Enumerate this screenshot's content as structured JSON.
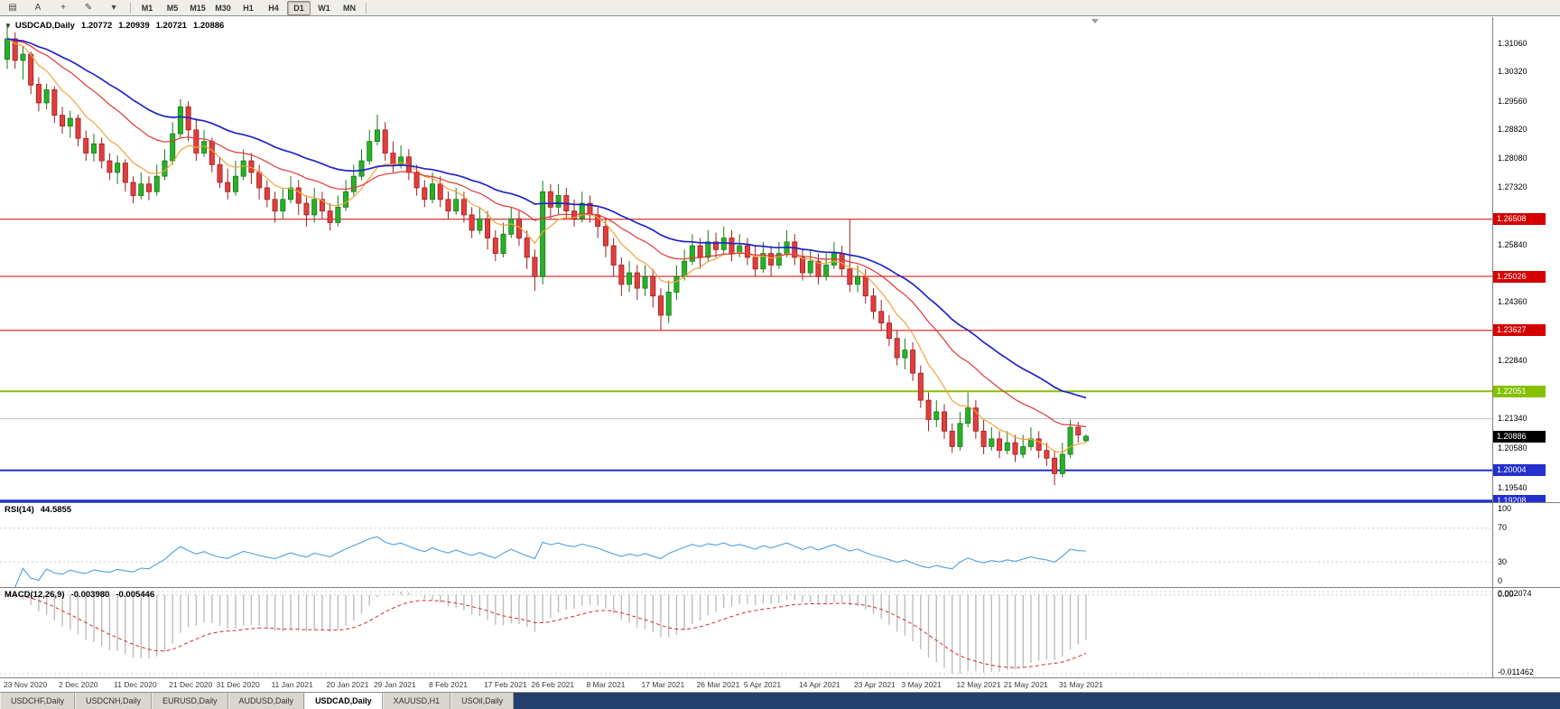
{
  "toolbar": {
    "icons": [
      {
        "name": "chart-window-icon",
        "glyph": "▤"
      },
      {
        "name": "text-tool-icon",
        "glyph": "A"
      },
      {
        "name": "crosshair-tool-icon",
        "glyph": "+"
      },
      {
        "name": "draw-tools-icon",
        "glyph": "✎"
      },
      {
        "name": "draw-tools-dropdown-arrow-icon",
        "glyph": "▾"
      }
    ],
    "timeframes": [
      "M1",
      "M5",
      "M15",
      "M30",
      "H1",
      "H4",
      "D1",
      "W1",
      "MN"
    ],
    "active_timeframe": "D1"
  },
  "chart": {
    "symbol_timeframe": "USDCAD,Daily",
    "open": "1.20772",
    "high": "1.20939",
    "low": "1.20721",
    "close": "1.20886"
  },
  "price_axis": {
    "labels": [
      {
        "p": 1.3106,
        "t": "1.31060"
      },
      {
        "p": 1.3032,
        "t": "1.30320"
      },
      {
        "p": 1.2956,
        "t": "1.29560"
      },
      {
        "p": 1.2882,
        "t": "1.28820"
      },
      {
        "p": 1.2808,
        "t": "1.28080"
      },
      {
        "p": 1.2732,
        "t": "1.27320"
      },
      {
        "p": 1.2584,
        "t": "1.25840"
      },
      {
        "p": 1.2436,
        "t": "1.24360"
      },
      {
        "p": 1.2284,
        "t": "1.22840"
      },
      {
        "p": 1.2134,
        "t": "1.21340"
      },
      {
        "p": 1.2058,
        "t": "1.20580"
      },
      {
        "p": 1.1954,
        "t": "1.19540"
      }
    ]
  },
  "levels": [
    {
      "price": 1.26508,
      "label": "1.26508",
      "color": "#d40000",
      "thickness": 1
    },
    {
      "price": 1.25026,
      "label": "1.25026",
      "color": "#d40000",
      "thickness": 1
    },
    {
      "price": 1.23627,
      "label": "1.23627",
      "color": "#d40000",
      "thickness": 1
    },
    {
      "price": 1.22051,
      "label": "1.22051",
      "color": "#86c100",
      "thickness": 2
    },
    {
      "price": 1.2134,
      "label": "",
      "color": "#c0c0c0",
      "thickness": 1
    },
    {
      "price": 1.20004,
      "label": "1.20004",
      "color": "#2230cc",
      "thickness": 2
    },
    {
      "price": 1.19208,
      "label": "1.19208",
      "color": "#2230cc",
      "thickness": 3
    }
  ],
  "current_price": {
    "price": 1.20886,
    "text": "1.20886",
    "badge_color": "#000000"
  },
  "rsi": {
    "label": "RSI(14)",
    "value": "44.5855",
    "period": 14,
    "levels": [
      100,
      70,
      30,
      0
    ],
    "color": "#4da0e0"
  },
  "macd": {
    "label": "MACD(12,26,9)",
    "value_main": "-0.003980",
    "value_signal": "-0.005446",
    "axis_labels": [
      "0.002074",
      "0.00",
      "-0.011462"
    ],
    "histogram_color": "#bdbdbd",
    "signal_color": "#d42a2a"
  },
  "tabs": {
    "items": [
      "USDCHF,Daily",
      "USDCNH,Daily",
      "EURUSD,Daily",
      "AUDUSD,Daily",
      "USDCAD,Daily",
      "XAUUSD,H1",
      "USOil,Daily"
    ],
    "active": "USDCAD,Daily"
  },
  "chart_data": {
    "type": "candlestick",
    "symbol": "USDCAD",
    "timeframe": "Daily",
    "y_range": [
      1.1918,
      1.3174
    ],
    "colors": {
      "up_fill": "#29b129",
      "up_border": "#167a16",
      "down_fill": "#e23e3e",
      "down_border": "#9c1f1f"
    },
    "moving_averages": [
      {
        "period": 8,
        "color": "#f2a33a",
        "width": 1.2
      },
      {
        "period": 20,
        "color": "#e03636",
        "width": 1.2
      },
      {
        "period": 34,
        "color": "#2024c8",
        "width": 1.7
      }
    ],
    "date_labels": [
      {
        "i": 0,
        "t": "23 Nov 2020"
      },
      {
        "i": 7,
        "t": "2 Dec 2020"
      },
      {
        "i": 14,
        "t": "11 Dec 2020"
      },
      {
        "i": 21,
        "t": "21 Dec 2020"
      },
      {
        "i": 27,
        "t": "31 Dec 2020"
      },
      {
        "i": 34,
        "t": "11 Jan 2021"
      },
      {
        "i": 41,
        "t": "20 Jan 2021"
      },
      {
        "i": 47,
        "t": "29 Jan 2021"
      },
      {
        "i": 54,
        "t": "8 Feb 2021"
      },
      {
        "i": 61,
        "t": "17 Feb 2021"
      },
      {
        "i": 67,
        "t": "26 Feb 2021"
      },
      {
        "i": 74,
        "t": "8 Mar 2021"
      },
      {
        "i": 81,
        "t": "17 Mar 2021"
      },
      {
        "i": 88,
        "t": "26 Mar 2021"
      },
      {
        "i": 94,
        "t": "5 Apr 2021"
      },
      {
        "i": 101,
        "t": "14 Apr 2021"
      },
      {
        "i": 108,
        "t": "23 Apr 2021"
      },
      {
        "i": 114,
        "t": "3 May 2021"
      },
      {
        "i": 121,
        "t": "12 May 2021"
      },
      {
        "i": 127,
        "t": "21 May 2021"
      },
      {
        "i": 134,
        "t": "31 May 2021"
      }
    ],
    "candles": [
      [
        1.3065,
        1.3158,
        1.304,
        1.3118
      ],
      [
        1.3118,
        1.3135,
        1.304,
        1.3062
      ],
      [
        1.3062,
        1.3098,
        1.3012,
        1.3078
      ],
      [
        1.3078,
        1.3085,
        1.2975,
        1.2998
      ],
      [
        1.3,
        1.3018,
        1.293,
        1.2952
      ],
      [
        1.2952,
        1.3002,
        1.2935,
        1.2986
      ],
      [
        1.2986,
        1.2995,
        1.29,
        1.292
      ],
      [
        1.292,
        1.2942,
        1.2872,
        1.2892
      ],
      [
        1.2892,
        1.2932,
        1.2862,
        1.2912
      ],
      [
        1.2912,
        1.2922,
        1.284,
        1.286
      ],
      [
        1.286,
        1.288,
        1.2802,
        1.2822
      ],
      [
        1.2822,
        1.2872,
        1.28,
        1.2846
      ],
      [
        1.2846,
        1.2862,
        1.2782,
        1.2802
      ],
      [
        1.2802,
        1.2822,
        1.2752,
        1.2772
      ],
      [
        1.2772,
        1.2816,
        1.2742,
        1.2796
      ],
      [
        1.2796,
        1.2806,
        1.2722,
        1.2746
      ],
      [
        1.2746,
        1.2762,
        1.2692,
        1.2712
      ],
      [
        1.2712,
        1.2772,
        1.2702,
        1.2742
      ],
      [
        1.2742,
        1.2762,
        1.27,
        1.2722
      ],
      [
        1.2722,
        1.2792,
        1.2712,
        1.2762
      ],
      [
        1.2762,
        1.2832,
        1.2752,
        1.2802
      ],
      [
        1.2802,
        1.2902,
        1.2792,
        1.2872
      ],
      [
        1.2872,
        1.2962,
        1.2862,
        1.2942
      ],
      [
        1.2942,
        1.2956,
        1.2852,
        1.2882
      ],
      [
        1.2882,
        1.2912,
        1.2802,
        1.2822
      ],
      [
        1.2822,
        1.2882,
        1.2812,
        1.2852
      ],
      [
        1.2852,
        1.2862,
        1.2772,
        1.2792
      ],
      [
        1.2792,
        1.2812,
        1.2732,
        1.2746
      ],
      [
        1.2746,
        1.2782,
        1.2702,
        1.2722
      ],
      [
        1.2722,
        1.2802,
        1.2712,
        1.2762
      ],
      [
        1.2762,
        1.2832,
        1.2752,
        1.2802
      ],
      [
        1.2802,
        1.2822,
        1.2742,
        1.2772
      ],
      [
        1.2772,
        1.2792,
        1.2702,
        1.2732
      ],
      [
        1.2732,
        1.2752,
        1.2682,
        1.2702
      ],
      [
        1.2702,
        1.2722,
        1.2642,
        1.2672
      ],
      [
        1.2672,
        1.2732,
        1.2652,
        1.2702
      ],
      [
        1.2702,
        1.2762,
        1.2692,
        1.2732
      ],
      [
        1.2732,
        1.2752,
        1.2662,
        1.2692
      ],
      [
        1.2692,
        1.2712,
        1.2632,
        1.2662
      ],
      [
        1.2662,
        1.2732,
        1.2642,
        1.2702
      ],
      [
        1.2702,
        1.2722,
        1.2652,
        1.2672
      ],
      [
        1.2672,
        1.2692,
        1.2622,
        1.2642
      ],
      [
        1.2642,
        1.2712,
        1.2632,
        1.2682
      ],
      [
        1.2682,
        1.2752,
        1.2672,
        1.2722
      ],
      [
        1.2722,
        1.2792,
        1.2712,
        1.2762
      ],
      [
        1.2762,
        1.2832,
        1.2752,
        1.2802
      ],
      [
        1.2802,
        1.2882,
        1.2792,
        1.2852
      ],
      [
        1.2852,
        1.2922,
        1.2842,
        1.2882
      ],
      [
        1.2882,
        1.2902,
        1.2802,
        1.2822
      ],
      [
        1.2822,
        1.2852,
        1.2772,
        1.2792
      ],
      [
        1.2792,
        1.2842,
        1.2782,
        1.2812
      ],
      [
        1.2812,
        1.2832,
        1.2752,
        1.2772
      ],
      [
        1.2772,
        1.2792,
        1.2712,
        1.2732
      ],
      [
        1.2732,
        1.2752,
        1.2682,
        1.2702
      ],
      [
        1.2702,
        1.2772,
        1.2692,
        1.2742
      ],
      [
        1.2742,
        1.2762,
        1.2682,
        1.2702
      ],
      [
        1.2702,
        1.2722,
        1.2652,
        1.2672
      ],
      [
        1.2672,
        1.2732,
        1.2662,
        1.2702
      ],
      [
        1.2702,
        1.2722,
        1.2642,
        1.2662
      ],
      [
        1.2662,
        1.2682,
        1.2602,
        1.2622
      ],
      [
        1.2622,
        1.2682,
        1.2612,
        1.2652
      ],
      [
        1.2652,
        1.2672,
        1.2572,
        1.2602
      ],
      [
        1.2602,
        1.2622,
        1.2542,
        1.2562
      ],
      [
        1.2562,
        1.2642,
        1.2552,
        1.2612
      ],
      [
        1.2612,
        1.2682,
        1.2602,
        1.2652
      ],
      [
        1.2652,
        1.2672,
        1.2582,
        1.2602
      ],
      [
        1.2602,
        1.2622,
        1.2522,
        1.2552
      ],
      [
        1.2552,
        1.2572,
        1.2465,
        1.2502
      ],
      [
        1.2502,
        1.275,
        1.2482,
        1.2722
      ],
      [
        1.2722,
        1.2742,
        1.2652,
        1.2682
      ],
      [
        1.2682,
        1.2742,
        1.2662,
        1.2712
      ],
      [
        1.2712,
        1.2732,
        1.2652,
        1.2672
      ],
      [
        1.2672,
        1.2702,
        1.2632,
        1.2652
      ],
      [
        1.2652,
        1.2722,
        1.2642,
        1.2692
      ],
      [
        1.2692,
        1.2712,
        1.2642,
        1.2662
      ],
      [
        1.2662,
        1.2682,
        1.2602,
        1.2632
      ],
      [
        1.2632,
        1.2652,
        1.2552,
        1.2582
      ],
      [
        1.2582,
        1.2602,
        1.2502,
        1.2532
      ],
      [
        1.2532,
        1.2552,
        1.2452,
        1.2482
      ],
      [
        1.2482,
        1.2542,
        1.2462,
        1.2512
      ],
      [
        1.2512,
        1.2532,
        1.2442,
        1.2472
      ],
      [
        1.2472,
        1.2532,
        1.2452,
        1.2502
      ],
      [
        1.2502,
        1.2522,
        1.2422,
        1.2452
      ],
      [
        1.2452,
        1.2472,
        1.2363,
        1.2402
      ],
      [
        1.2402,
        1.2492,
        1.2382,
        1.2462
      ],
      [
        1.2462,
        1.2532,
        1.2442,
        1.2502
      ],
      [
        1.2502,
        1.2572,
        1.2492,
        1.2542
      ],
      [
        1.2542,
        1.2612,
        1.2532,
        1.2582
      ],
      [
        1.2582,
        1.2602,
        1.2522,
        1.2552
      ],
      [
        1.2552,
        1.2622,
        1.2542,
        1.2592
      ],
      [
        1.2592,
        1.2616,
        1.2552,
        1.2572
      ],
      [
        1.2572,
        1.2632,
        1.2562,
        1.2602
      ],
      [
        1.2602,
        1.2622,
        1.2542,
        1.2562
      ],
      [
        1.2562,
        1.2612,
        1.2552,
        1.2582
      ],
      [
        1.2582,
        1.2602,
        1.2532,
        1.2552
      ],
      [
        1.2552,
        1.2582,
        1.2502,
        1.2522
      ],
      [
        1.2522,
        1.2592,
        1.2512,
        1.2562
      ],
      [
        1.2562,
        1.2582,
        1.2502,
        1.2532
      ],
      [
        1.2532,
        1.2592,
        1.2522,
        1.2562
      ],
      [
        1.2562,
        1.2622,
        1.2552,
        1.2592
      ],
      [
        1.2592,
        1.2612,
        1.2532,
        1.2552
      ],
      [
        1.2552,
        1.2572,
        1.2492,
        1.2512
      ],
      [
        1.2512,
        1.2572,
        1.2502,
        1.2542
      ],
      [
        1.2542,
        1.2562,
        1.2482,
        1.2502
      ],
      [
        1.2502,
        1.2562,
        1.2492,
        1.2532
      ],
      [
        1.2532,
        1.2592,
        1.2522,
        1.2562
      ],
      [
        1.2562,
        1.2582,
        1.2502,
        1.2522
      ],
      [
        1.2522,
        1.2651,
        1.2462,
        1.2482
      ],
      [
        1.2482,
        1.2532,
        1.2462,
        1.2502
      ],
      [
        1.2502,
        1.2522,
        1.2432,
        1.2452
      ],
      [
        1.2452,
        1.2472,
        1.2392,
        1.2412
      ],
      [
        1.2412,
        1.2442,
        1.2362,
        1.2382
      ],
      [
        1.2382,
        1.2402,
        1.2322,
        1.2342
      ],
      [
        1.2342,
        1.2362,
        1.2272,
        1.2292
      ],
      [
        1.2292,
        1.2342,
        1.2262,
        1.2312
      ],
      [
        1.2312,
        1.2332,
        1.2232,
        1.2252
      ],
      [
        1.2252,
        1.2272,
        1.2162,
        1.2182
      ],
      [
        1.2182,
        1.2202,
        1.2102,
        1.2132
      ],
      [
        1.2132,
        1.2182,
        1.2112,
        1.2152
      ],
      [
        1.2152,
        1.2172,
        1.2082,
        1.2102
      ],
      [
        1.2102,
        1.2122,
        1.2046,
        1.2062
      ],
      [
        1.2062,
        1.2152,
        1.2052,
        1.2122
      ],
      [
        1.2122,
        1.2202,
        1.2112,
        1.2162
      ],
      [
        1.2162,
        1.2182,
        1.2082,
        1.2102
      ],
      [
        1.2102,
        1.2132,
        1.2042,
        1.2062
      ],
      [
        1.2062,
        1.2112,
        1.2052,
        1.2082
      ],
      [
        1.2082,
        1.2102,
        1.2032,
        1.2052
      ],
      [
        1.2052,
        1.2102,
        1.2042,
        1.2072
      ],
      [
        1.2072,
        1.2092,
        1.2022,
        1.2042
      ],
      [
        1.2042,
        1.2092,
        1.2032,
        1.2062
      ],
      [
        1.2062,
        1.2112,
        1.2052,
        1.2082
      ],
      [
        1.2082,
        1.2102,
        1.2032,
        1.2052
      ],
      [
        1.2052,
        1.2072,
        1.2012,
        1.2032
      ],
      [
        1.2032,
        1.2052,
        1.1962,
        1.1992
      ],
      [
        1.1992,
        1.2072,
        1.1982,
        1.2042
      ],
      [
        1.2042,
        1.2132,
        1.2032,
        1.2112
      ],
      [
        1.2112,
        1.2126,
        1.2072,
        1.2092
      ],
      [
        1.20772,
        1.20939,
        1.20721,
        1.20886
      ]
    ]
  }
}
